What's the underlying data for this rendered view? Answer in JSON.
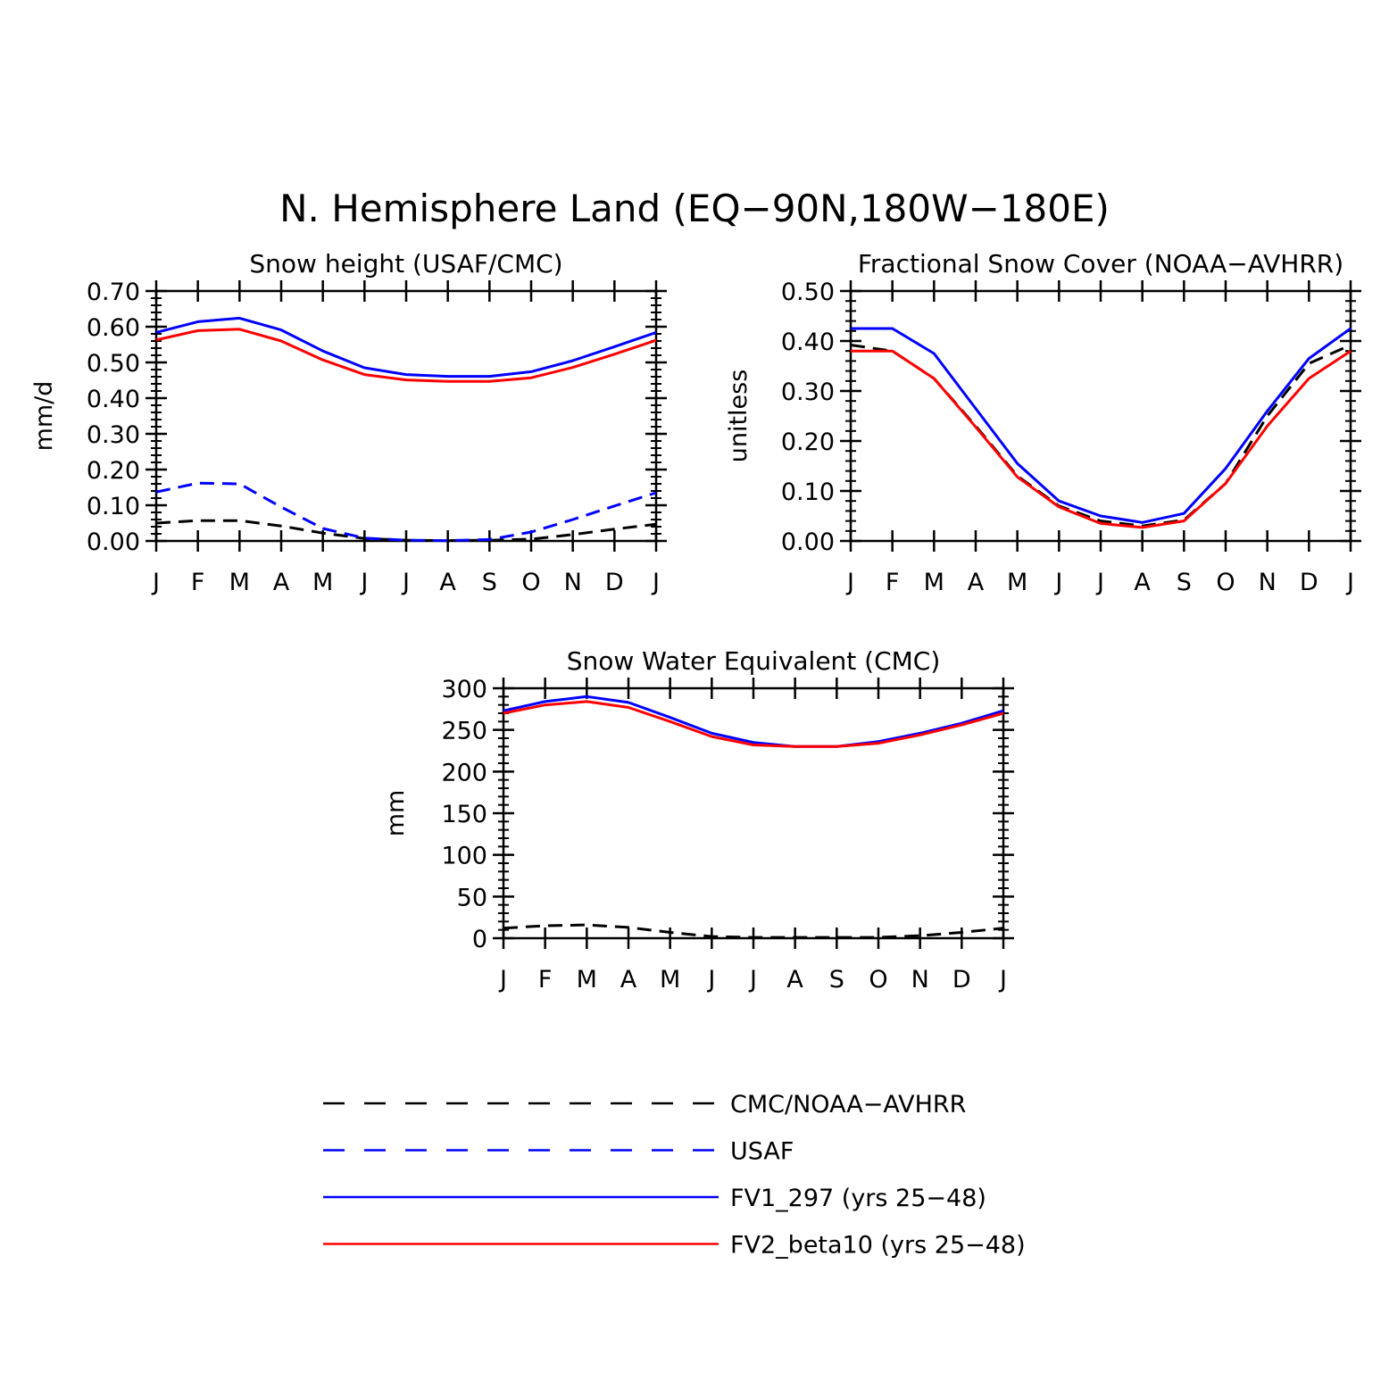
{
  "figure": {
    "title": "N. Hemisphere Land (EQ−90N,180W−180E)"
  },
  "chart_data": [
    {
      "type": "line",
      "title": "Snow height (USAF/CMC)",
      "ylabel": "mm/d",
      "xlabel": "",
      "categories": [
        "J",
        "F",
        "M",
        "A",
        "M",
        "J",
        "J",
        "A",
        "S",
        "O",
        "N",
        "D",
        "J"
      ],
      "ylim": [
        0,
        0.7
      ],
      "yticks": [
        "0.00",
        "0.10",
        "0.20",
        "0.30",
        "0.40",
        "0.50",
        "0.60",
        "0.70"
      ],
      "series": [
        {
          "ref": "cmc",
          "values": [
            0.05,
            0.057,
            0.057,
            0.042,
            0.022,
            0.007,
            0.002,
            0.001,
            0.002,
            0.005,
            0.018,
            0.033,
            0.047
          ]
        },
        {
          "ref": "usaf",
          "values": [
            0.137,
            0.162,
            0.16,
            0.095,
            0.035,
            0.008,
            0.002,
            0.001,
            0.004,
            0.025,
            0.06,
            0.098,
            0.135
          ]
        },
        {
          "ref": "fv1",
          "values": [
            0.584,
            0.614,
            0.624,
            0.591,
            0.532,
            0.485,
            0.466,
            0.461,
            0.461,
            0.474,
            0.505,
            0.544,
            0.584
          ]
        },
        {
          "ref": "fv2",
          "values": [
            0.563,
            0.589,
            0.593,
            0.56,
            0.507,
            0.466,
            0.451,
            0.447,
            0.447,
            0.457,
            0.486,
            0.523,
            0.562
          ]
        }
      ]
    },
    {
      "type": "line",
      "title": "Fractional Snow Cover (NOAA−AVHRR)",
      "ylabel": "unitless",
      "xlabel": "",
      "categories": [
        "J",
        "F",
        "M",
        "A",
        "M",
        "J",
        "J",
        "A",
        "S",
        "O",
        "N",
        "D",
        "J"
      ],
      "ylim": [
        0,
        0.5
      ],
      "yticks": [
        "0.00",
        "0.10",
        "0.20",
        "0.30",
        "0.40",
        "0.50"
      ],
      "series": [
        {
          "ref": "cmc",
          "values": [
            0.392,
            0.38,
            0.325,
            0.23,
            0.13,
            0.07,
            0.04,
            0.03,
            0.042,
            0.115,
            0.25,
            0.355,
            0.392
          ]
        },
        {
          "ref": "fv1",
          "values": [
            0.425,
            0.425,
            0.375,
            0.265,
            0.155,
            0.08,
            0.05,
            0.037,
            0.055,
            0.145,
            0.26,
            0.365,
            0.425
          ]
        },
        {
          "ref": "fv2",
          "values": [
            0.38,
            0.38,
            0.325,
            0.228,
            0.128,
            0.068,
            0.035,
            0.027,
            0.04,
            0.115,
            0.23,
            0.325,
            0.38
          ]
        }
      ]
    },
    {
      "type": "line",
      "title": "Snow Water Equivalent (CMC)",
      "ylabel": "mm",
      "xlabel": "",
      "categories": [
        "J",
        "F",
        "M",
        "A",
        "M",
        "J",
        "J",
        "A",
        "S",
        "O",
        "N",
        "D",
        "J"
      ],
      "ylim": [
        0,
        300
      ],
      "yticks": [
        "0",
        "50",
        "100",
        "150",
        "200",
        "250",
        "300"
      ],
      "series": [
        {
          "ref": "cmc",
          "values": [
            12,
            15,
            16,
            13,
            7,
            2,
            1,
            1,
            1,
            1,
            3,
            7,
            12
          ]
        },
        {
          "ref": "fv1",
          "values": [
            273,
            284,
            290,
            283,
            265,
            246,
            235,
            230,
            230,
            236,
            246,
            258,
            273
          ]
        },
        {
          "ref": "fv2",
          "values": [
            270,
            280,
            284,
            277,
            260,
            242,
            232,
            230,
            230,
            234,
            244,
            256,
            270
          ]
        }
      ]
    }
  ],
  "legend": [
    {
      "ref": "cmc",
      "label": "CMC/NOAA−AVHRR",
      "color": "#000000",
      "dash": true
    },
    {
      "ref": "usaf",
      "label": "USAF",
      "color": "#0000ff",
      "dash": true
    },
    {
      "ref": "fv1",
      "label": "FV1_297 (yrs 25−48)",
      "color": "#0000ff",
      "dash": false
    },
    {
      "ref": "fv2",
      "label": "FV2_beta10 (yrs 25−48)",
      "color": "#ff0000",
      "dash": false
    }
  ]
}
